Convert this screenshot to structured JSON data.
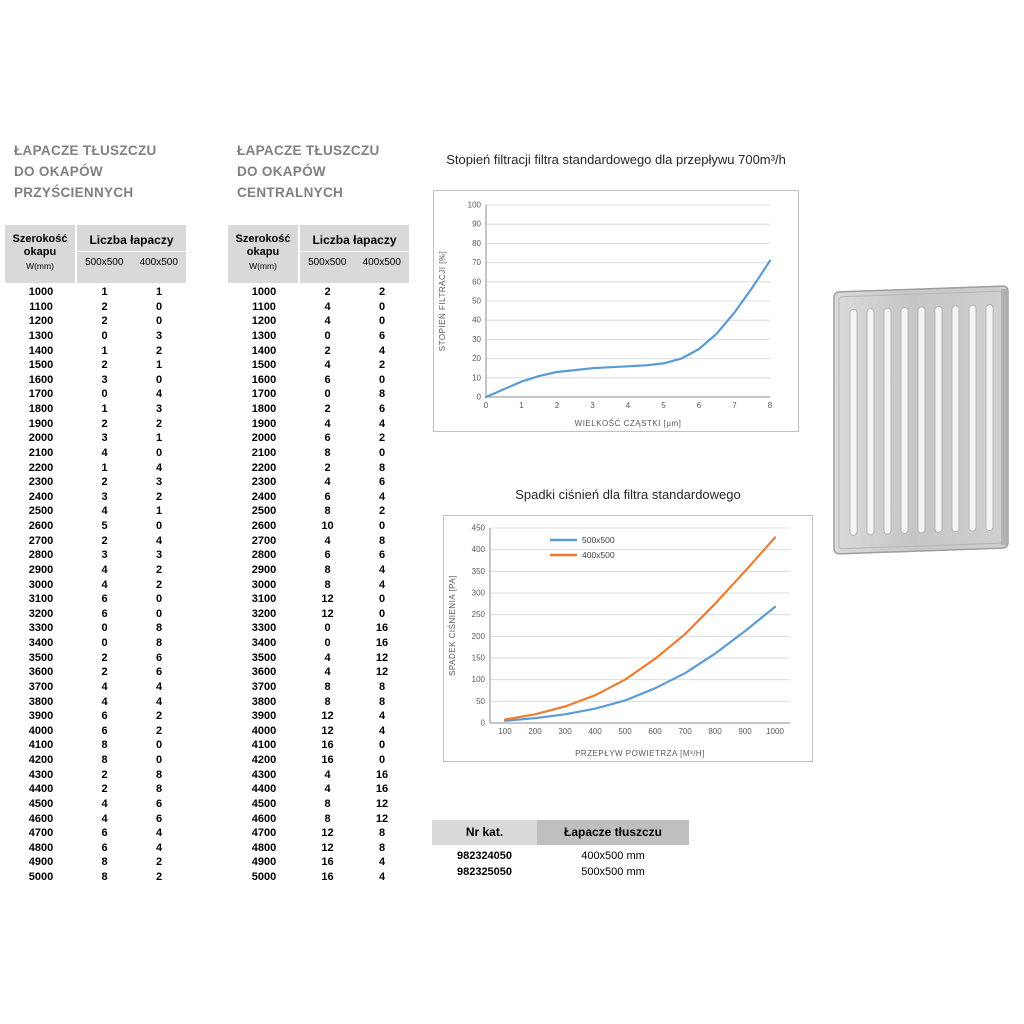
{
  "colors": {
    "accent_blue": "#5b9bd5",
    "accent_orange": "#ed7d31",
    "table_header_gray": "#d9d9d9",
    "catalog_header_dark_gray": "#bfbfbf",
    "section_title_gray": "#808080"
  },
  "left_table": {
    "title_lines": [
      "ŁAPACZE TŁUSZCZU",
      "DO OKAPÓW",
      "PRZYŚCIENNYCH"
    ],
    "header": {
      "width_label_line1": "Szerokość",
      "width_label_line2": "okapu",
      "width_label_line3": "W(mm)",
      "group_label": "Liczba łapaczy",
      "col_500": "500x500",
      "col_400": "400x500"
    },
    "rows": [
      [
        1000,
        1,
        1
      ],
      [
        1100,
        2,
        0
      ],
      [
        1200,
        2,
        0
      ],
      [
        1300,
        0,
        3
      ],
      [
        1400,
        1,
        2
      ],
      [
        1500,
        2,
        1
      ],
      [
        1600,
        3,
        0
      ],
      [
        1700,
        0,
        4
      ],
      [
        1800,
        1,
        3
      ],
      [
        1900,
        2,
        2
      ],
      [
        2000,
        3,
        1
      ],
      [
        2100,
        4,
        0
      ],
      [
        2200,
        1,
        4
      ],
      [
        2300,
        2,
        3
      ],
      [
        2400,
        3,
        2
      ],
      [
        2500,
        4,
        1
      ],
      [
        2600,
        5,
        0
      ],
      [
        2700,
        2,
        4
      ],
      [
        2800,
        3,
        3
      ],
      [
        2900,
        4,
        2
      ],
      [
        3000,
        4,
        2
      ],
      [
        3100,
        6,
        0
      ],
      [
        3200,
        6,
        0
      ],
      [
        3300,
        0,
        8
      ],
      [
        3400,
        0,
        8
      ],
      [
        3500,
        2,
        6
      ],
      [
        3600,
        2,
        6
      ],
      [
        3700,
        4,
        4
      ],
      [
        3800,
        4,
        4
      ],
      [
        3900,
        6,
        2
      ],
      [
        4000,
        6,
        2
      ],
      [
        4100,
        8,
        0
      ],
      [
        4200,
        8,
        0
      ],
      [
        4300,
        2,
        8
      ],
      [
        4400,
        2,
        8
      ],
      [
        4500,
        4,
        6
      ],
      [
        4600,
        4,
        6
      ],
      [
        4700,
        6,
        4
      ],
      [
        4800,
        6,
        4
      ],
      [
        4900,
        8,
        2
      ],
      [
        5000,
        8,
        2
      ]
    ]
  },
  "center_table": {
    "title_lines": [
      "ŁAPACZE TŁUSZCZU",
      "DO OKAPÓW",
      "CENTRALNYCH"
    ],
    "header": {
      "width_label_line1": "Szerokość",
      "width_label_line2": "okapu",
      "width_label_line3": "W(mm)",
      "group_label": "Liczba łapaczy",
      "col_500": "500x500",
      "col_400": "400x500"
    },
    "rows": [
      [
        1000,
        2,
        2
      ],
      [
        1100,
        4,
        0
      ],
      [
        1200,
        4,
        0
      ],
      [
        1300,
        0,
        6
      ],
      [
        1400,
        2,
        4
      ],
      [
        1500,
        4,
        2
      ],
      [
        1600,
        6,
        0
      ],
      [
        1700,
        0,
        8
      ],
      [
        1800,
        2,
        6
      ],
      [
        1900,
        4,
        4
      ],
      [
        2000,
        6,
        2
      ],
      [
        2100,
        8,
        0
      ],
      [
        2200,
        2,
        8
      ],
      [
        2300,
        4,
        6
      ],
      [
        2400,
        6,
        4
      ],
      [
        2500,
        8,
        2
      ],
      [
        2600,
        10,
        0
      ],
      [
        2700,
        4,
        8
      ],
      [
        2800,
        6,
        6
      ],
      [
        2900,
        8,
        4
      ],
      [
        3000,
        8,
        4
      ],
      [
        3100,
        12,
        0
      ],
      [
        3200,
        12,
        0
      ],
      [
        3300,
        0,
        16
      ],
      [
        3400,
        0,
        16
      ],
      [
        3500,
        4,
        12
      ],
      [
        3600,
        4,
        12
      ],
      [
        3700,
        8,
        8
      ],
      [
        3800,
        8,
        8
      ],
      [
        3900,
        12,
        4
      ],
      [
        4000,
        12,
        4
      ],
      [
        4100,
        16,
        0
      ],
      [
        4200,
        16,
        0
      ],
      [
        4300,
        4,
        16
      ],
      [
        4400,
        4,
        16
      ],
      [
        4500,
        8,
        12
      ],
      [
        4600,
        8,
        12
      ],
      [
        4700,
        12,
        8
      ],
      [
        4800,
        12,
        8
      ],
      [
        4900,
        16,
        4
      ],
      [
        5000,
        16,
        4
      ]
    ]
  },
  "chart_data": [
    {
      "type": "line",
      "title": "Stopień filtracji filtra standardowego dla przepływu 700m³/h",
      "xlabel": "WIELKOŚĆ CZĄSTKI [µm]",
      "ylabel": "STOPIEŃ FILTRACJI [%]",
      "xlim": [
        0,
        8
      ],
      "ylim": [
        0,
        100
      ],
      "xticks": [
        0,
        1,
        2,
        3,
        4,
        5,
        6,
        7,
        8
      ],
      "yticks": [
        0,
        10,
        20,
        30,
        40,
        50,
        60,
        70,
        80,
        90,
        100
      ],
      "grid": true,
      "legend": false,
      "series": [
        {
          "name": "stopień filtracji",
          "color": "#5b9bd5",
          "x": [
            0,
            0.5,
            1,
            1.5,
            2,
            2.5,
            3,
            3.5,
            4,
            4.5,
            5,
            5.5,
            6,
            6.5,
            7,
            7.5,
            8
          ],
          "y": [
            0,
            4,
            8,
            11,
            13,
            14,
            15,
            15.5,
            16,
            16.5,
            17.5,
            20,
            25,
            33,
            44,
            57,
            71
          ]
        }
      ]
    },
    {
      "type": "line",
      "title": "Spadki ciśnień dla filtra standardowego",
      "xlabel": "PRZEPŁYW POWIETRZA [M³/H]",
      "ylabel": "SPADEK CIŚNIENIA [PA]",
      "xlim": [
        50,
        1050
      ],
      "ylim": [
        0,
        450
      ],
      "xticks": [
        100,
        200,
        300,
        400,
        500,
        600,
        700,
        800,
        900,
        1000
      ],
      "yticks": [
        0,
        50,
        100,
        150,
        200,
        250,
        300,
        350,
        400,
        450
      ],
      "grid": true,
      "legend": true,
      "legend_position": "top",
      "series": [
        {
          "name": "500x500",
          "color": "#5b9bd5",
          "x": [
            100,
            200,
            300,
            400,
            500,
            600,
            700,
            800,
            900,
            1000
          ],
          "y": [
            5,
            11,
            20,
            33,
            52,
            80,
            115,
            160,
            212,
            268
          ]
        },
        {
          "name": "400x500",
          "color": "#ed7d31",
          "x": [
            100,
            200,
            300,
            400,
            500,
            600,
            700,
            800,
            900,
            1000
          ],
          "y": [
            8,
            20,
            38,
            64,
            100,
            148,
            205,
            275,
            350,
            428
          ]
        }
      ]
    }
  ],
  "catalog_table": {
    "headers": [
      "Nr kat.",
      "Łapacze tłuszczu"
    ],
    "rows": [
      [
        "982324050",
        "400x500 mm"
      ],
      [
        "982325050",
        "500x500 mm"
      ]
    ]
  }
}
